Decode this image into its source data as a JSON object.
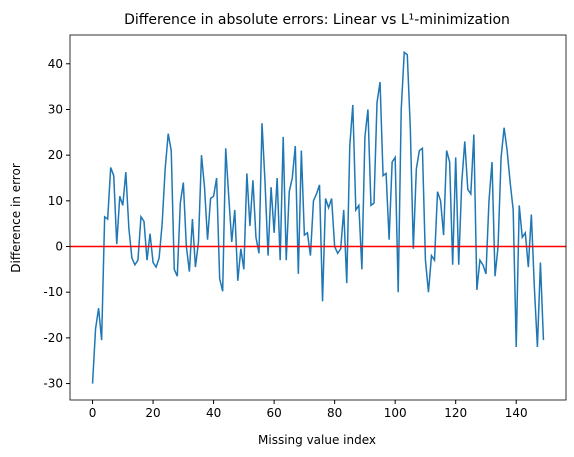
{
  "chart_data": {
    "type": "line",
    "title": "Difference in absolute errors: Linear vs L¹-minimization",
    "xlabel": "Missing value index",
    "ylabel": "Difference in error",
    "x": [
      0,
      1,
      2,
      3,
      4,
      5,
      6,
      7,
      8,
      9,
      10,
      11,
      12,
      13,
      14,
      15,
      16,
      17,
      18,
      19,
      20,
      21,
      22,
      23,
      24,
      25,
      26,
      27,
      28,
      29,
      30,
      31,
      32,
      33,
      34,
      35,
      36,
      37,
      38,
      39,
      40,
      41,
      42,
      43,
      44,
      45,
      46,
      47,
      48,
      49,
      50,
      51,
      52,
      53,
      54,
      55,
      56,
      57,
      58,
      59,
      60,
      61,
      62,
      63,
      64,
      65,
      66,
      67,
      68,
      69,
      70,
      71,
      72,
      73,
      74,
      75,
      76,
      77,
      78,
      79,
      80,
      81,
      82,
      83,
      84,
      85,
      86,
      87,
      88,
      89,
      90,
      91,
      92,
      93,
      94,
      95,
      96,
      97,
      98,
      99,
      100,
      101,
      102,
      103,
      104,
      105,
      106,
      107,
      108,
      109,
      110,
      111,
      112,
      113,
      114,
      115,
      116,
      117,
      118,
      119,
      120,
      121,
      122,
      123,
      124,
      125,
      126,
      127,
      128,
      129,
      130,
      131,
      132,
      133,
      134,
      135,
      136,
      137,
      138,
      139,
      140,
      141,
      142,
      143,
      144,
      145,
      146,
      147,
      148,
      149
    ],
    "series": [
      {
        "name": "difference",
        "color": "#1f77b4",
        "values": [
          -30,
          -18,
          -13.5,
          -20.5,
          6.5,
          6,
          17.3,
          15.5,
          0.5,
          11,
          9,
          16.3,
          4,
          -2.5,
          -4,
          -3,
          6.5,
          5.5,
          -3,
          2.8,
          -3.5,
          -4.5,
          -2.5,
          5,
          17,
          24.7,
          21,
          -5,
          -6.5,
          9.5,
          14,
          0,
          -5.5,
          6,
          -4.5,
          1,
          20,
          13,
          1.5,
          10.5,
          11,
          15,
          -7,
          -9.8,
          21.5,
          11,
          1,
          8,
          -7.5,
          -0.5,
          -5,
          16,
          4.5,
          14.5,
          2,
          -1.5,
          27,
          14,
          -2,
          13,
          3,
          15,
          -3,
          24,
          -3,
          12,
          15,
          22,
          -6,
          21,
          2.5,
          3,
          -2,
          10,
          11.5,
          13.5,
          -12,
          10.5,
          8.5,
          10.5,
          0,
          -1.5,
          -0.5,
          8,
          -8,
          22,
          31,
          8,
          9,
          -5,
          24,
          30,
          9,
          9.5,
          31.5,
          36,
          15.5,
          16,
          1.5,
          18.5,
          19.5,
          -10,
          30,
          42.5,
          42,
          26,
          -0.5,
          17,
          21,
          21.5,
          -3,
          -10,
          -2,
          -3,
          12,
          10,
          2.5,
          21,
          18.5,
          -4,
          19.5,
          -4,
          14,
          23,
          12.5,
          11.5,
          24.5,
          -9.5,
          -3,
          -4,
          -6,
          10,
          18.5,
          -6.5,
          0,
          19.5,
          26,
          21,
          14,
          8,
          -22,
          9,
          2,
          3,
          -4.5,
          7,
          -9,
          -22,
          -3.5,
          -20.5
        ]
      }
    ],
    "hline": {
      "y": 0,
      "color": "#ff0000"
    },
    "xlim": [
      -7.45,
      156.45
    ],
    "ylim": [
      -33.6,
      46.3
    ],
    "xticks": [
      0,
      20,
      40,
      60,
      80,
      100,
      120,
      140
    ],
    "yticks": [
      -30,
      -20,
      -10,
      0,
      10,
      20,
      30,
      40
    ]
  }
}
